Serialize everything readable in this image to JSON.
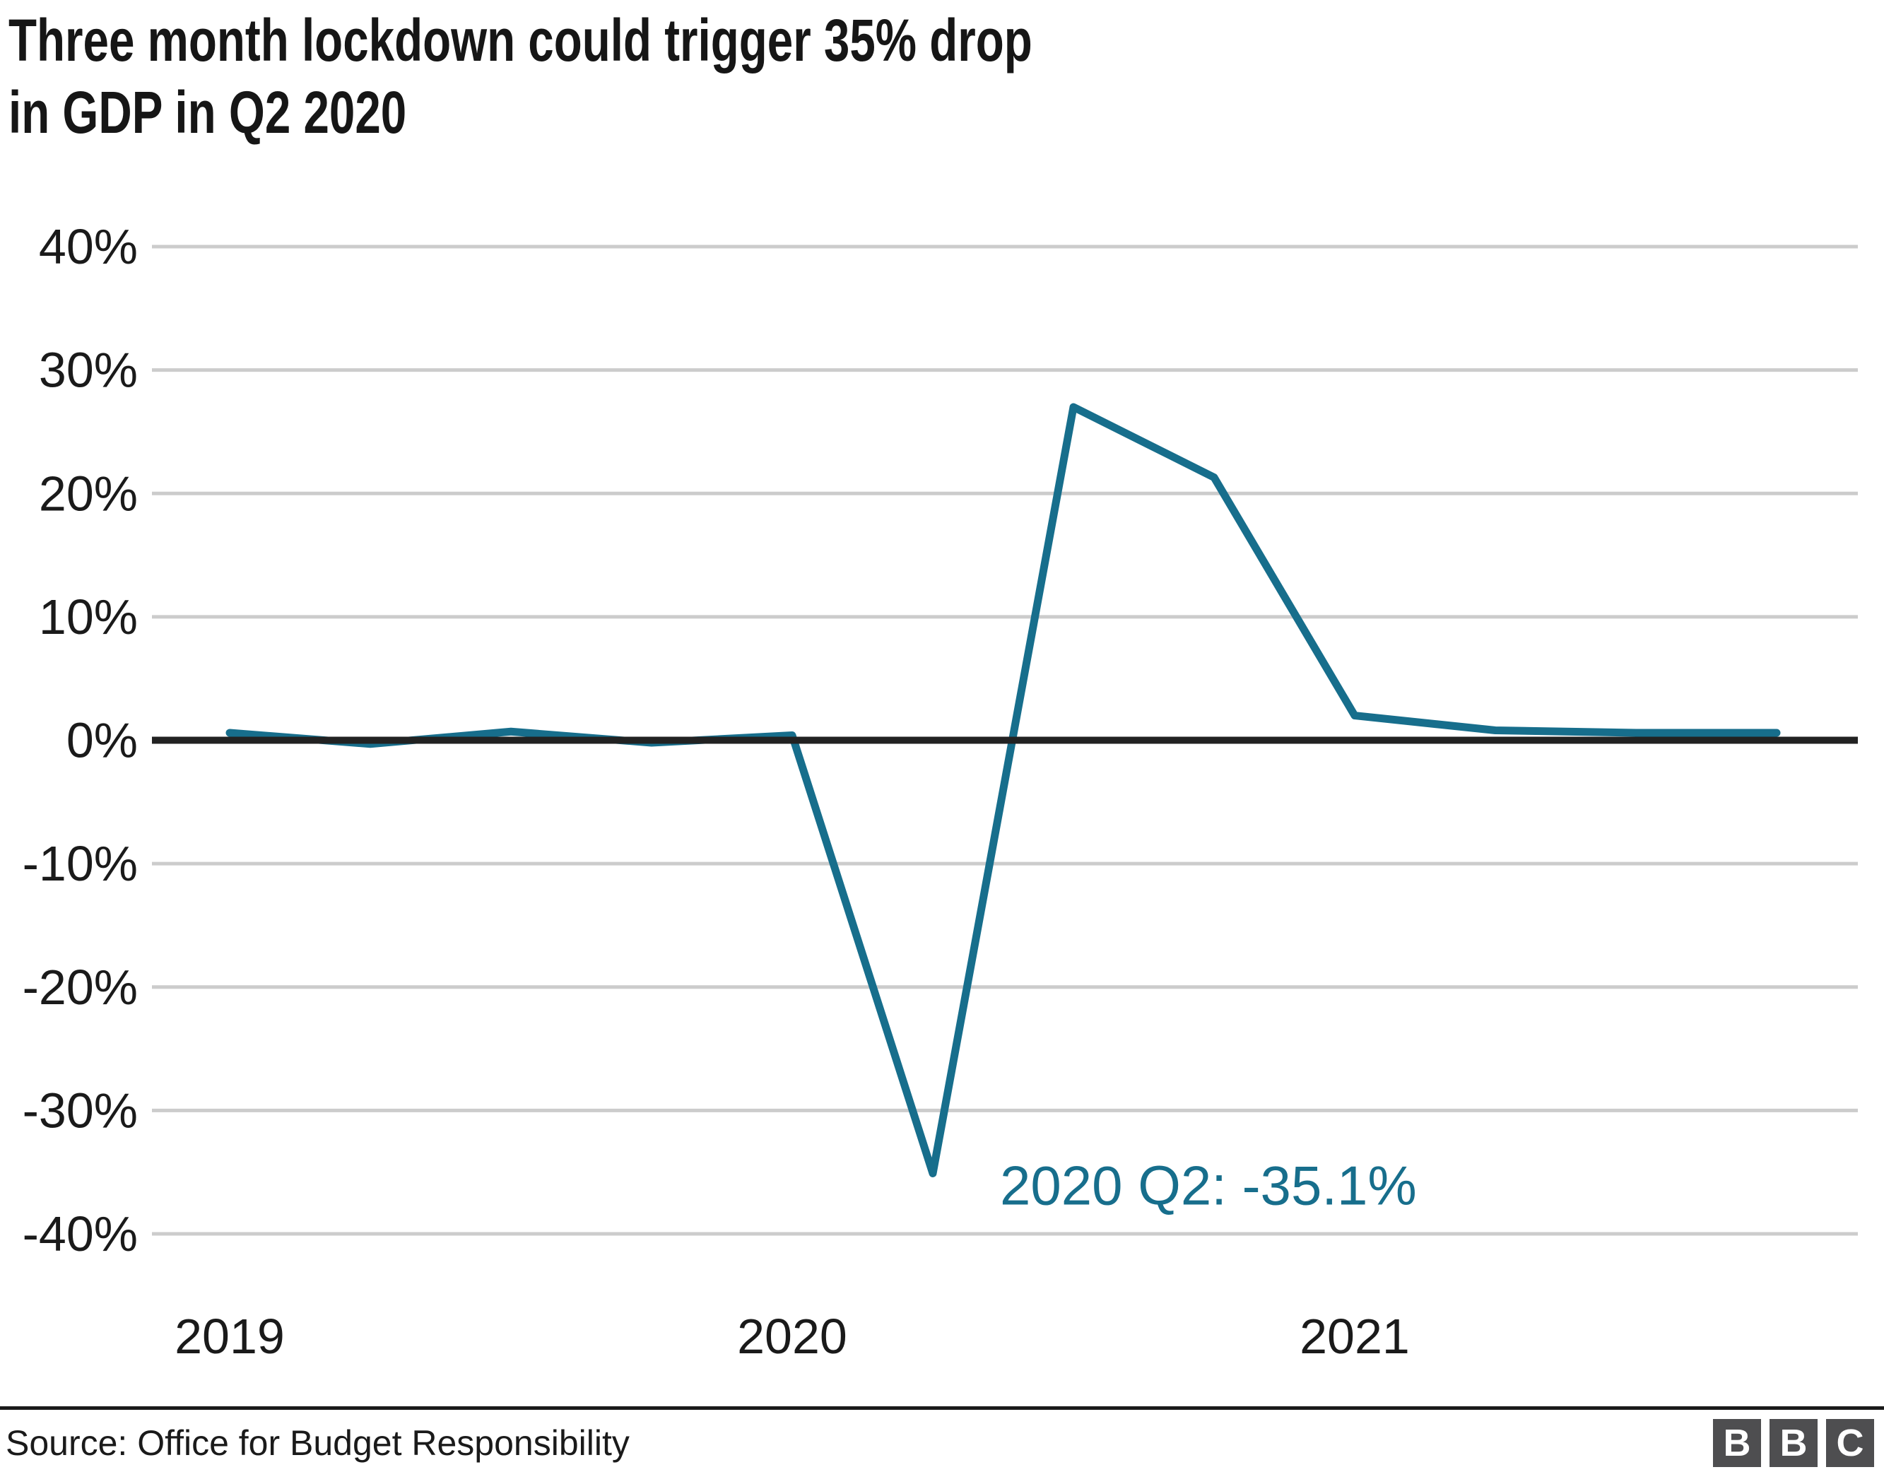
{
  "page": {
    "title_lines": [
      "Three month lockdown could trigger 35% drop",
      "in GDP in Q2 2020"
    ]
  },
  "chart_data": {
    "type": "line",
    "title": "Three month lockdown could trigger 35% drop in GDP in Q2 2020",
    "x": [
      "2019 Q1",
      "2019 Q2",
      "2019 Q3",
      "2019 Q4",
      "2020 Q1",
      "2020 Q2",
      "2020 Q3",
      "2020 Q4",
      "2021 Q1",
      "2021 Q2",
      "2021 Q3",
      "2021 Q4"
    ],
    "values": [
      0.6,
      -0.3,
      0.7,
      -0.2,
      0.4,
      -35.1,
      27.0,
      21.3,
      2.0,
      0.8,
      0.6,
      0.6
    ],
    "unit": "%",
    "xlabel": "",
    "ylabel": "",
    "ylim": [
      -45,
      45
    ],
    "y_ticks": [
      40,
      30,
      20,
      10,
      0,
      -10,
      -20,
      -30,
      -40
    ],
    "y_tick_suffix": "%",
    "x_tick_labels": [
      {
        "label": "2019",
        "index": 0
      },
      {
        "label": "2020",
        "index": 4
      },
      {
        "label": "2021",
        "index": 8
      }
    ],
    "grid": true,
    "legend": "none",
    "annotation": {
      "text": "2020 Q2: -35.1%",
      "value_index": 5
    }
  },
  "colors": {
    "line": "#176e8c",
    "annotation_text": "#176e8c",
    "grid_line": "#cccccc",
    "zero_axis": "#222222",
    "axis_text": "#1a1a1a",
    "title_text": "#161616",
    "divider": "#1a1a1a",
    "source_text": "#1a1a1a",
    "logo_square_bg": "#4e4e50",
    "logo_letter": "#ffffff"
  },
  "footer": {
    "source": "Source: Office for Budget Responsibility",
    "logo_letters": [
      "B",
      "B",
      "C"
    ]
  }
}
